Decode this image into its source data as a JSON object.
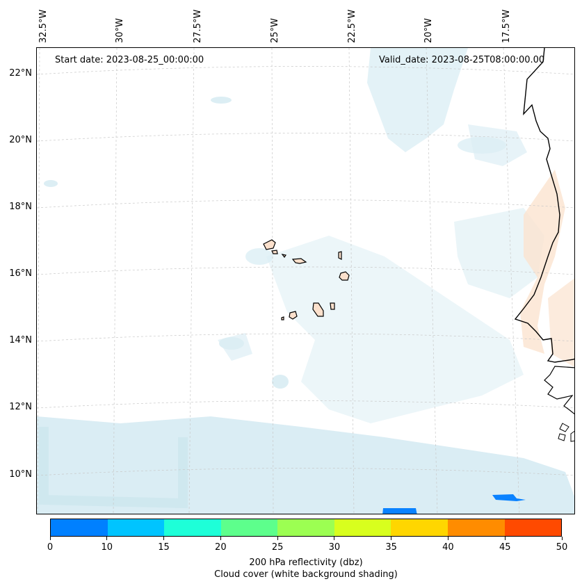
{
  "header": {
    "start_date": "Start date: 2023-08-25_00:00:00",
    "valid_date": "Valid_date: 2023-08-25T08:00:00.00"
  },
  "map": {
    "longitude_labels": [
      "32.5°W",
      "30°W",
      "27.5°W",
      "25°W",
      "22.5°W",
      "20°W",
      "17.5°W"
    ],
    "latitude_labels": [
      "22°N",
      "20°N",
      "18°N",
      "16°N",
      "14°N",
      "12°N",
      "10°N"
    ],
    "colors": {
      "cloud": "#d6ebf2",
      "cloud_dense": "#c4e2ec",
      "warm_shading": "#fbe3cf",
      "land_outline": "#000000",
      "island_fill": "#fbe0cc",
      "reflectivity_low": "#0a82ff",
      "gridline": "#c8c8c8"
    }
  },
  "colorbar": {
    "ticks": [
      "0",
      "10",
      "15",
      "20",
      "25",
      "30",
      "35",
      "40",
      "45",
      "50"
    ],
    "colors": [
      "#0080ff",
      "#00c4ff",
      "#1effd8",
      "#5dff8c",
      "#9cff52",
      "#d8ff1e",
      "#ffd600",
      "#ff8c00",
      "#ff4a00"
    ],
    "label_line1": "200 hPa reflectivity (dbz)",
    "label_line2": "Cloud cover (white background shading)"
  }
}
